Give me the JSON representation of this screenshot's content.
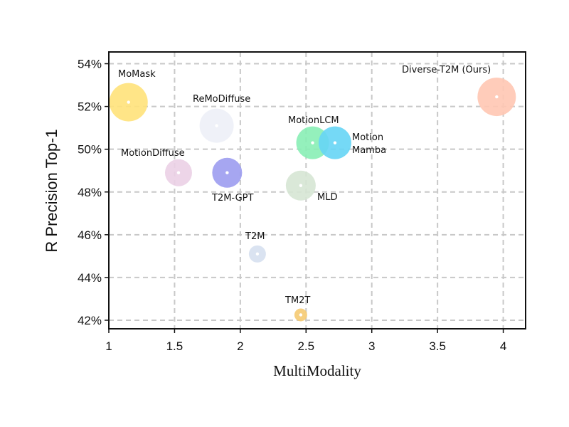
{
  "chart_data": {
    "type": "scatter",
    "title": "",
    "xlabel": "MultiModality",
    "ylabel": "R Precision Top-1",
    "xlim": [
      1,
      4.17
    ],
    "ylim": [
      41.6,
      54.55
    ],
    "xticks": [
      "1",
      "1.5",
      "2",
      "2.5",
      "3",
      "3.5",
      "4"
    ],
    "yticks": [
      "42%",
      "44%",
      "46%",
      "48%",
      "50%",
      "52%",
      "54%"
    ],
    "grid": true,
    "points": [
      {
        "label": "MoMask",
        "x": 1.15,
        "y": 52.2,
        "color": "#FFE27A"
      },
      {
        "label": "ReMoDiffuse",
        "x": 1.82,
        "y": 51.1,
        "color": "#EDEFF7"
      },
      {
        "label": "MotionDiffuse",
        "x": 1.53,
        "y": 48.9,
        "color": "#EBD0E6"
      },
      {
        "label": "T2M-GPT",
        "x": 1.9,
        "y": 48.9,
        "color": "#9C9CF0"
      },
      {
        "label": "MotionLCM",
        "x": 2.55,
        "y": 50.3,
        "color": "#88EEB5"
      },
      {
        "label": "Motion Mamba",
        "x": 2.72,
        "y": 50.3,
        "color": "#66D5F5"
      },
      {
        "label": "MLD",
        "x": 2.46,
        "y": 48.3,
        "color": "#D6E6D4"
      },
      {
        "label": "T2M",
        "x": 2.13,
        "y": 45.1,
        "color": "#D6E0F0"
      },
      {
        "label": "TM2T",
        "x": 2.46,
        "y": 42.25,
        "color": "#F5CA72"
      },
      {
        "label": "Diverse-T2M (Ours)",
        "x": 3.95,
        "y": 52.45,
        "color": "#FFC7B3"
      }
    ]
  },
  "point_labels": {
    "momask": "MoMask",
    "remodiffuse": "ReMoDiffuse",
    "motiondiffuse": "MotionDiffuse",
    "t2mgpt": "T2M-GPT",
    "motionlcm": "MotionLCM",
    "mamba_line1": "Motion",
    "mamba_line2": "Mamba",
    "mld": "MLD",
    "t2m": "T2M",
    "tm2t": "TM2T",
    "ours": "Diverse-T2M  (Ours)"
  }
}
